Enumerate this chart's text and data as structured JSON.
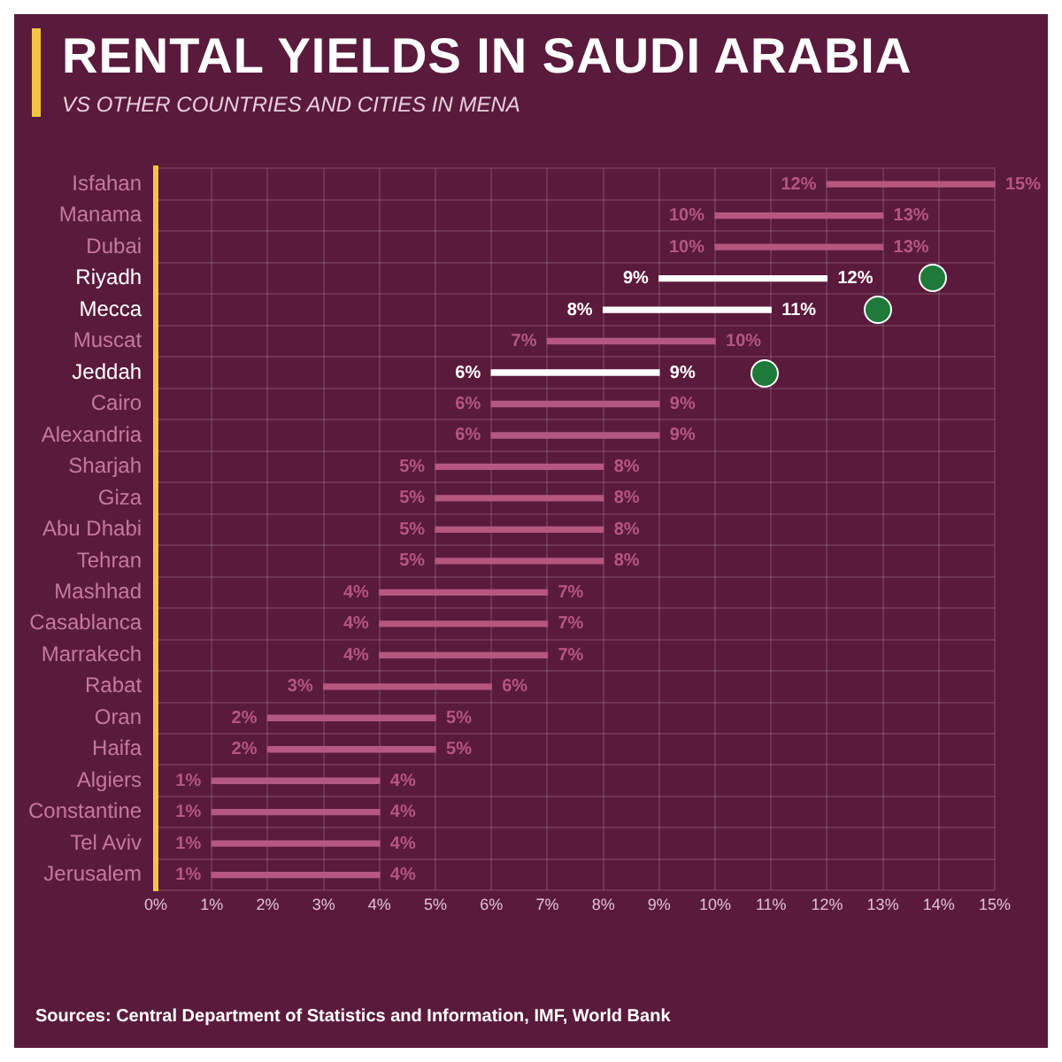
{
  "chart_data": {
    "type": "bar",
    "orientation": "horizontal",
    "title": "RENTAL YIELDS IN SAUDI ARABIA",
    "subtitle": "VS OTHER COUNTRIES AND CITIES IN MENA",
    "categories": [
      "Isfahan",
      "Manama",
      "Dubai",
      "Riyadh",
      "Mecca",
      "Muscat",
      "Jeddah",
      "Cairo",
      "Alexandria",
      "Sharjah",
      "Giza",
      "Abu Dhabi",
      "Tehran",
      "Mashhad",
      "Casablanca",
      "Marrakech",
      "Rabat",
      "Oran",
      "Haifa",
      "Algiers",
      "Constantine",
      "Tel Aviv",
      "Jerusalem"
    ],
    "base": [
      12,
      10,
      10,
      9,
      8,
      7,
      6,
      6,
      6,
      5,
      5,
      5,
      5,
      4,
      4,
      4,
      3,
      2,
      2,
      1,
      1,
      1,
      1
    ],
    "values": [
      3,
      3,
      3,
      3,
      3,
      3,
      3,
      3,
      3,
      3,
      3,
      3,
      3,
      3,
      3,
      3,
      3,
      3,
      3,
      3,
      3,
      3,
      3
    ],
    "colors": [
      "#b5577f",
      "#b5577f",
      "#b5577f",
      "#ffffff",
      "#ffffff",
      "#b5577f",
      "#ffffff",
      "#b5577f",
      "#b5577f",
      "#b5577f",
      "#b5577f",
      "#b5577f",
      "#b5577f",
      "#b5577f",
      "#b5577f",
      "#b5577f",
      "#b5577f",
      "#b5577f",
      "#b5577f",
      "#b5577f",
      "#b5577f",
      "#b5577f",
      "#b5577f"
    ],
    "xlim": [
      0,
      15
    ],
    "xticks": [
      {
        "value": 0,
        "label": "0%"
      },
      {
        "value": 1,
        "label": "1%"
      },
      {
        "value": 2,
        "label": "2%"
      },
      {
        "value": 3,
        "label": "3%"
      },
      {
        "value": 4,
        "label": "4%"
      },
      {
        "value": 5,
        "label": "5%"
      },
      {
        "value": 6,
        "label": "6%"
      },
      {
        "value": 7,
        "label": "7%"
      },
      {
        "value": 8,
        "label": "8%"
      },
      {
        "value": 9,
        "label": "9%"
      },
      {
        "value": 10,
        "label": "10%"
      },
      {
        "value": 11,
        "label": "11%"
      },
      {
        "value": 12,
        "label": "12%"
      },
      {
        "value": 13,
        "label": "13%"
      },
      {
        "value": 14,
        "label": "14%"
      },
      {
        "value": 15,
        "label": "15%"
      }
    ],
    "grid": true,
    "legend": false,
    "annotations": [
      {
        "text": "12%",
        "x": 12,
        "y": "Isfahan"
      },
      {
        "text": "15%",
        "x": 15,
        "y": "Isfahan"
      },
      {
        "text": "10%",
        "x": 10,
        "y": "Manama"
      },
      {
        "text": "13%",
        "x": 13,
        "y": "Manama"
      },
      {
        "text": "10%",
        "x": 10,
        "y": "Dubai"
      },
      {
        "text": "13%",
        "x": 13,
        "y": "Dubai"
      },
      {
        "text": "9%",
        "x": 9,
        "y": "Riyadh"
      },
      {
        "text": "12%",
        "x": 12,
        "y": "Riyadh"
      },
      {
        "text": "8%",
        "x": 8,
        "y": "Mecca"
      },
      {
        "text": "11%",
        "x": 11,
        "y": "Mecca"
      },
      {
        "text": "7%",
        "x": 7,
        "y": "Muscat"
      },
      {
        "text": "10%",
        "x": 10,
        "y": "Muscat"
      },
      {
        "text": "6%",
        "x": 6,
        "y": "Jeddah"
      },
      {
        "text": "9%",
        "x": 9,
        "y": "Jeddah"
      },
      {
        "text": "6%",
        "x": 6,
        "y": "Cairo"
      },
      {
        "text": "9%",
        "x": 9,
        "y": "Cairo"
      },
      {
        "text": "6%",
        "x": 6,
        "y": "Alexandria"
      },
      {
        "text": "9%",
        "x": 9,
        "y": "Alexandria"
      },
      {
        "text": "5%",
        "x": 5,
        "y": "Sharjah"
      },
      {
        "text": "8%",
        "x": 8,
        "y": "Sharjah"
      },
      {
        "text": "5%",
        "x": 5,
        "y": "Giza"
      },
      {
        "text": "8%",
        "x": 8,
        "y": "Giza"
      },
      {
        "text": "5%",
        "x": 5,
        "y": "Abu Dhabi"
      },
      {
        "text": "8%",
        "x": 8,
        "y": "Abu Dhabi"
      },
      {
        "text": "5%",
        "x": 5,
        "y": "Tehran"
      },
      {
        "text": "8%",
        "x": 8,
        "y": "Tehran"
      },
      {
        "text": "4%",
        "x": 4,
        "y": "Mashhad"
      },
      {
        "text": "7%",
        "x": 7,
        "y": "Mashhad"
      },
      {
        "text": "4%",
        "x": 4,
        "y": "Casablanca"
      },
      {
        "text": "7%",
        "x": 7,
        "y": "Casablanca"
      },
      {
        "text": "4%",
        "x": 4,
        "y": "Marrakech"
      },
      {
        "text": "7%",
        "x": 7,
        "y": "Marrakech"
      },
      {
        "text": "3%",
        "x": 3,
        "y": "Rabat"
      },
      {
        "text": "6%",
        "x": 6,
        "y": "Rabat"
      },
      {
        "text": "2%",
        "x": 2,
        "y": "Oran"
      },
      {
        "text": "5%",
        "x": 5,
        "y": "Oran"
      },
      {
        "text": "2%",
        "x": 2,
        "y": "Haifa"
      },
      {
        "text": "5%",
        "x": 5,
        "y": "Haifa"
      },
      {
        "text": "1%",
        "x": 1,
        "y": "Algiers"
      },
      {
        "text": "4%",
        "x": 4,
        "y": "Algiers"
      },
      {
        "text": "1%",
        "x": 1,
        "y": "Constantine"
      },
      {
        "text": "4%",
        "x": 4,
        "y": "Constantine"
      },
      {
        "text": "1%",
        "x": 1,
        "y": "Tel Aviv"
      },
      {
        "text": "4%",
        "x": 4,
        "y": "Tel Aviv"
      },
      {
        "text": "1%",
        "x": 1,
        "y": "Jerusalem"
      },
      {
        "text": "4%",
        "x": 4,
        "y": "Jerusalem"
      },
      "Sources: Central Department of Statistics and Information, IMF, World Bank"
    ]
  }
}
